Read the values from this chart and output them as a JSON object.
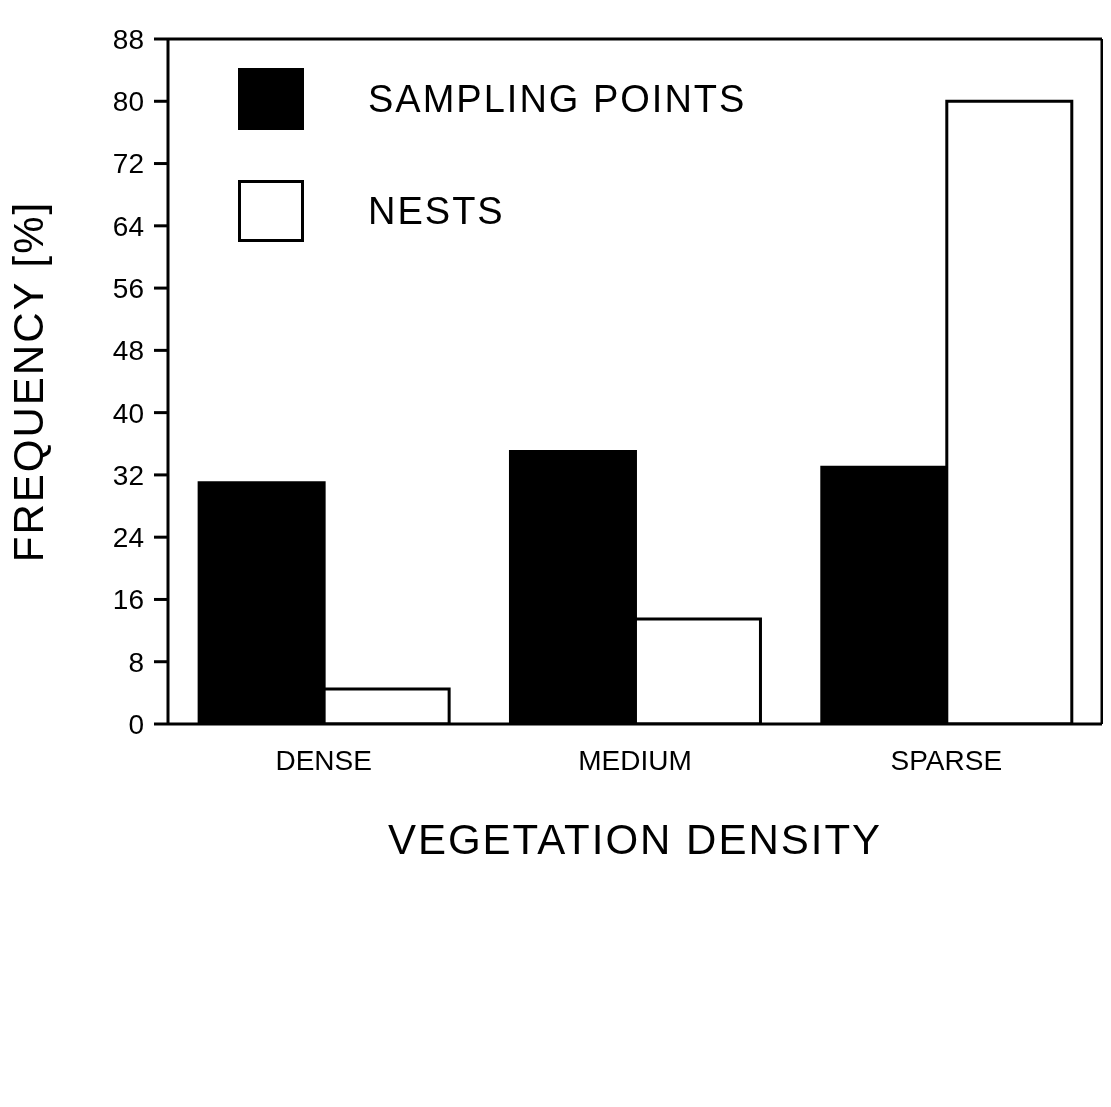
{
  "chart_data": {
    "type": "bar",
    "xlabel": "VEGETATION DENSITY",
    "ylabel": "FREQUENCY [%]",
    "categories": [
      "DENSE",
      "MEDIUM",
      "SPARSE"
    ],
    "series": [
      {
        "name": "SAMPLING POINTS",
        "color": "#000000",
        "values": [
          31,
          35,
          33
        ]
      },
      {
        "name": "NESTS",
        "color": "#ffffff",
        "values": [
          4.5,
          13.5,
          80
        ]
      }
    ],
    "ylim": [
      0,
      88
    ],
    "yticks": [
      0,
      8,
      16,
      24,
      32,
      40,
      48,
      56,
      64,
      72,
      80,
      88
    ],
    "grid": false,
    "legend": "top left"
  }
}
